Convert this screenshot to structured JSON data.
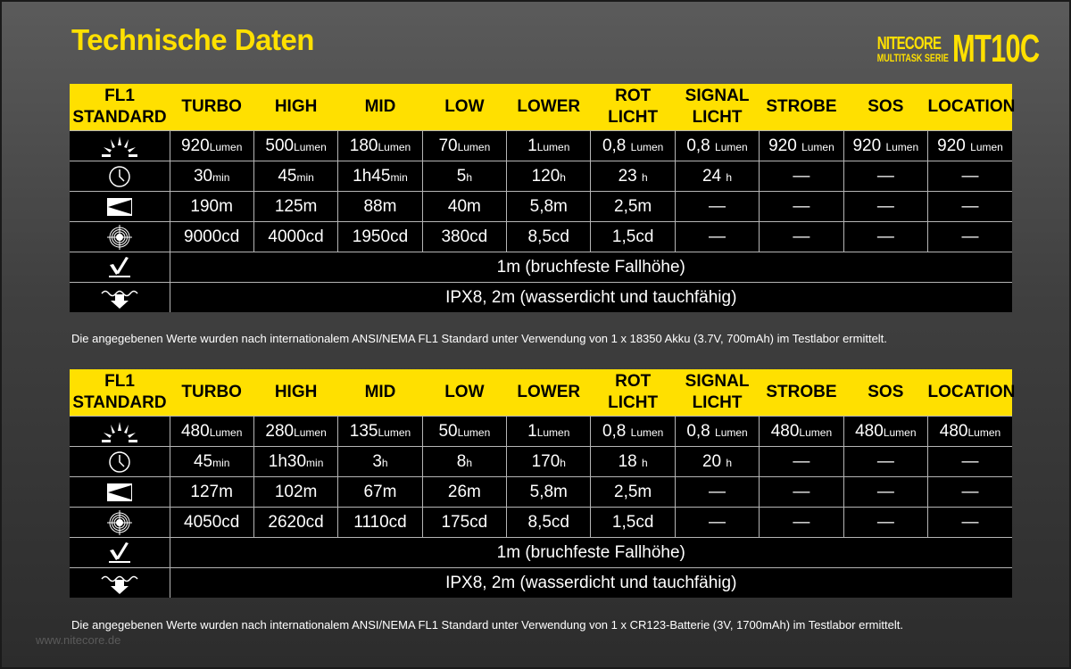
{
  "title": "Technische Daten",
  "logo": {
    "brand": "NITECORE",
    "series": "MULTITASK SERIE",
    "model": "MT10C"
  },
  "watermark": "www.nitecore.de",
  "colors": {
    "accent": "#ffe000",
    "table_bg": "#000000",
    "grid": "#b5b5b5"
  },
  "headers": [
    "FL1 STANDARD",
    "TURBO",
    "HIGH",
    "MID",
    "LOW",
    "LOWER",
    "ROT LICHT",
    "SIGNAL LICHT",
    "STROBE",
    "SOS",
    "LOCATION"
  ],
  "row_icons": [
    "brightness-icon",
    "runtime-clock-icon",
    "beam-distance-icon",
    "intensity-target-icon",
    "impact-resistance-icon",
    "waterproof-icon"
  ],
  "tables": [
    {
      "rows": [
        [
          {
            "v": "920",
            "u": "Lumen"
          },
          {
            "v": "500",
            "u": "Lumen"
          },
          {
            "v": "180",
            "u": "Lumen"
          },
          {
            "v": "70",
            "u": "Lumen"
          },
          {
            "v": "1",
            "u": "Lumen"
          },
          {
            "v": "0,8 ",
            "u": "Lumen"
          },
          {
            "v": "0,8 ",
            "u": "Lumen"
          },
          {
            "v": "920 ",
            "u": "Lumen"
          },
          {
            "v": "920 ",
            "u": "Lumen"
          },
          {
            "v": "920 ",
            "u": "Lumen"
          }
        ],
        [
          {
            "v": "30",
            "u": "min"
          },
          {
            "v": "45",
            "u": "min"
          },
          {
            "v": "1h45",
            "u": "min"
          },
          {
            "v": "5",
            "u": "h"
          },
          {
            "v": "120",
            "u": "h"
          },
          {
            "v": "23 ",
            "u": "h"
          },
          {
            "v": "24 ",
            "u": "h"
          },
          {
            "v": "—"
          },
          {
            "v": "—"
          },
          {
            "v": "—"
          }
        ],
        [
          {
            "v": "190m"
          },
          {
            "v": "125m"
          },
          {
            "v": "88m"
          },
          {
            "v": "40m"
          },
          {
            "v": "5,8m"
          },
          {
            "v": "2,5m"
          },
          {
            "v": "—"
          },
          {
            "v": "—"
          },
          {
            "v": "—"
          },
          {
            "v": "—"
          }
        ],
        [
          {
            "v": "9000cd"
          },
          {
            "v": "4000cd"
          },
          {
            "v": "1950cd"
          },
          {
            "v": "380cd"
          },
          {
            "v": "8,5cd"
          },
          {
            "v": "1,5cd"
          },
          {
            "v": "—"
          },
          {
            "v": "—"
          },
          {
            "v": "—"
          },
          {
            "v": "—"
          }
        ]
      ],
      "impact": "1m (bruchfeste Fallhöhe)",
      "waterproof": "IPX8, 2m (wasserdicht und tauchfähig)",
      "note": "Die angegebenen Werte wurden nach internationalem ANSI/NEMA FL1 Standard unter Verwendung von 1 x 18350 Akku (3.7V, 700mAh) im Testlabor ermittelt."
    },
    {
      "rows": [
        [
          {
            "v": "480",
            "u": "Lumen"
          },
          {
            "v": "280",
            "u": "Lumen"
          },
          {
            "v": "135",
            "u": "Lumen"
          },
          {
            "v": "50",
            "u": "Lumen"
          },
          {
            "v": "1",
            "u": "Lumen"
          },
          {
            "v": "0,8 ",
            "u": "Lumen"
          },
          {
            "v": "0,8 ",
            "u": "Lumen"
          },
          {
            "v": "480",
            "u": "Lumen"
          },
          {
            "v": "480",
            "u": "Lumen"
          },
          {
            "v": "480",
            "u": "Lumen"
          }
        ],
        [
          {
            "v": "45",
            "u": "min"
          },
          {
            "v": "1h30",
            "u": "min"
          },
          {
            "v": "3",
            "u": "h"
          },
          {
            "v": "8",
            "u": "h"
          },
          {
            "v": "170",
            "u": "h"
          },
          {
            "v": "18 ",
            "u": "h"
          },
          {
            "v": "20 ",
            "u": "h"
          },
          {
            "v": "—"
          },
          {
            "v": "—"
          },
          {
            "v": "—"
          }
        ],
        [
          {
            "v": "127m"
          },
          {
            "v": "102m"
          },
          {
            "v": "67m"
          },
          {
            "v": "26m"
          },
          {
            "v": "5,8m"
          },
          {
            "v": "2,5m"
          },
          {
            "v": "—"
          },
          {
            "v": "—"
          },
          {
            "v": "—"
          },
          {
            "v": "—"
          }
        ],
        [
          {
            "v": "4050cd"
          },
          {
            "v": "2620cd"
          },
          {
            "v": "1110cd"
          },
          {
            "v": "175cd"
          },
          {
            "v": "8,5cd"
          },
          {
            "v": "1,5cd"
          },
          {
            "v": "—"
          },
          {
            "v": "—"
          },
          {
            "v": "—"
          },
          {
            "v": "—"
          }
        ]
      ],
      "impact": "1m (bruchfeste Fallhöhe)",
      "waterproof": "IPX8, 2m (wasserdicht und tauchfähig)",
      "note": "Die angegebenen Werte wurden nach internationalem ANSI/NEMA FL1 Standard unter Verwendung von 1 x CR123-Batterie (3V, 1700mAh) im Testlabor ermittelt."
    }
  ]
}
